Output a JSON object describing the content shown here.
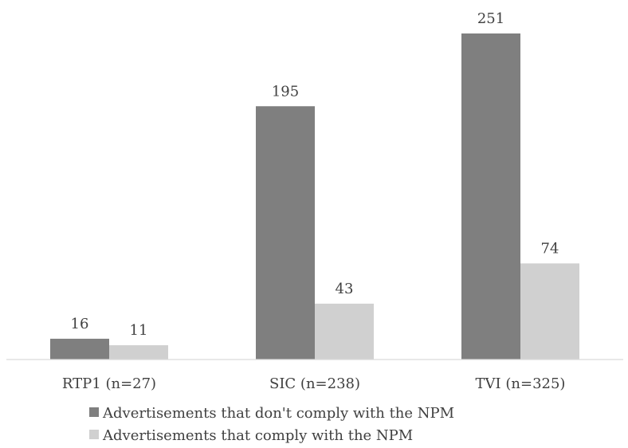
{
  "chart_data": {
    "type": "bar",
    "title": "",
    "xlabel": "",
    "ylabel": "",
    "categories": [
      "RTP1 (n=27)",
      "SIC (n=238)",
      "TVI (n=325)"
    ],
    "series": [
      {
        "name": "Advertisements that don't comply with the NPM",
        "values": [
          16,
          195,
          251
        ],
        "color": "#7f7f7f"
      },
      {
        "name": "Advertisements that comply with the NPM",
        "values": [
          11,
          43,
          74
        ],
        "color": "#d0d0d0"
      }
    ],
    "ylim": [
      0,
      251
    ],
    "grid": false,
    "axis_color": "#d9d9d9",
    "text_color": "#404040",
    "legend_position": "bottom"
  }
}
